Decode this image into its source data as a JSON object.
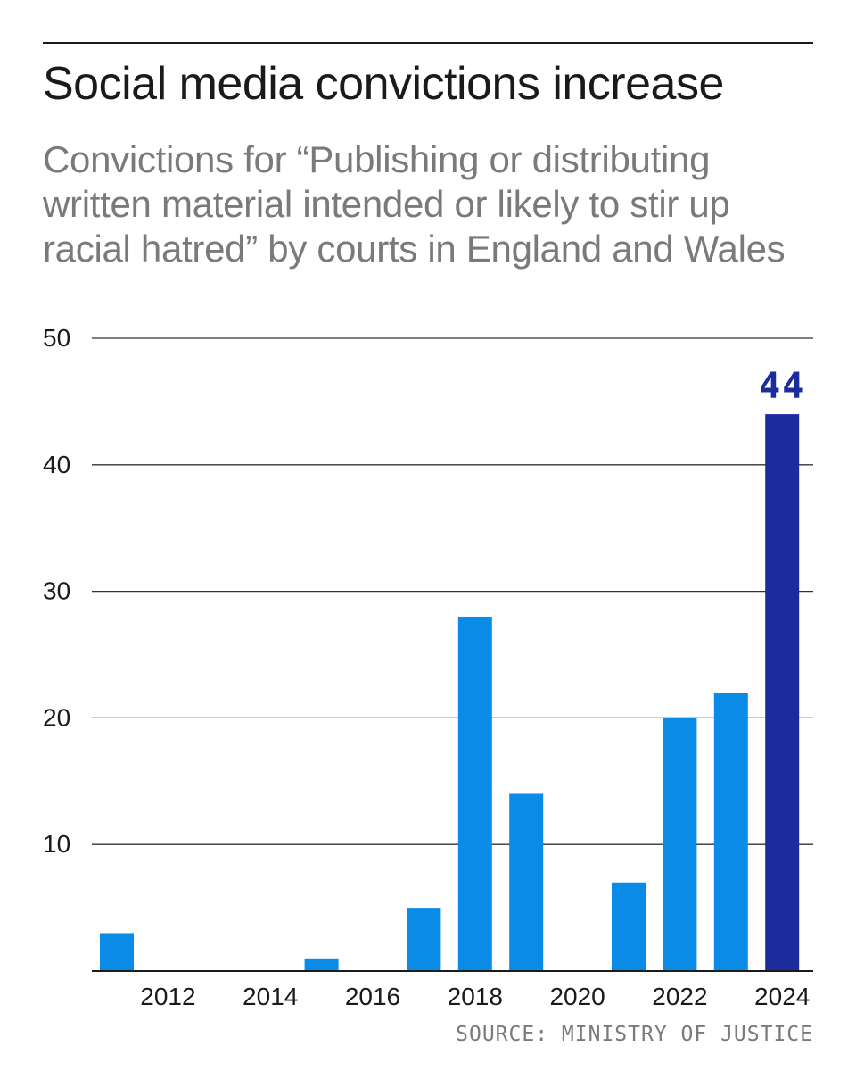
{
  "chart_data": {
    "type": "bar",
    "title": "Social media convictions increase",
    "subtitle": "Convictions for “Publishing or distributing written material intended or likely to stir up racial hatred” by courts in England and Wales",
    "x": [
      2011,
      2012,
      2013,
      2014,
      2015,
      2016,
      2017,
      2018,
      2019,
      2020,
      2021,
      2022,
      2023,
      2024
    ],
    "values": [
      3,
      0,
      0,
      0,
      1,
      0,
      5,
      28,
      14,
      0,
      7,
      20,
      22,
      44
    ],
    "x_tick_labels": [
      "2012",
      "2014",
      "2016",
      "2018",
      "2020",
      "2022",
      "2024"
    ],
    "y_ticks": [
      "10",
      "20",
      "30",
      "40",
      "50"
    ],
    "ylim": [
      0,
      50
    ],
    "highlight": {
      "year": 2024,
      "label": "44",
      "color": "#1c2c9c"
    },
    "bar_color": "#0a8be8",
    "grid": true,
    "xlabel": "",
    "ylabel": ""
  },
  "source": "SOURCE: MINISTRY OF JUSTICE"
}
